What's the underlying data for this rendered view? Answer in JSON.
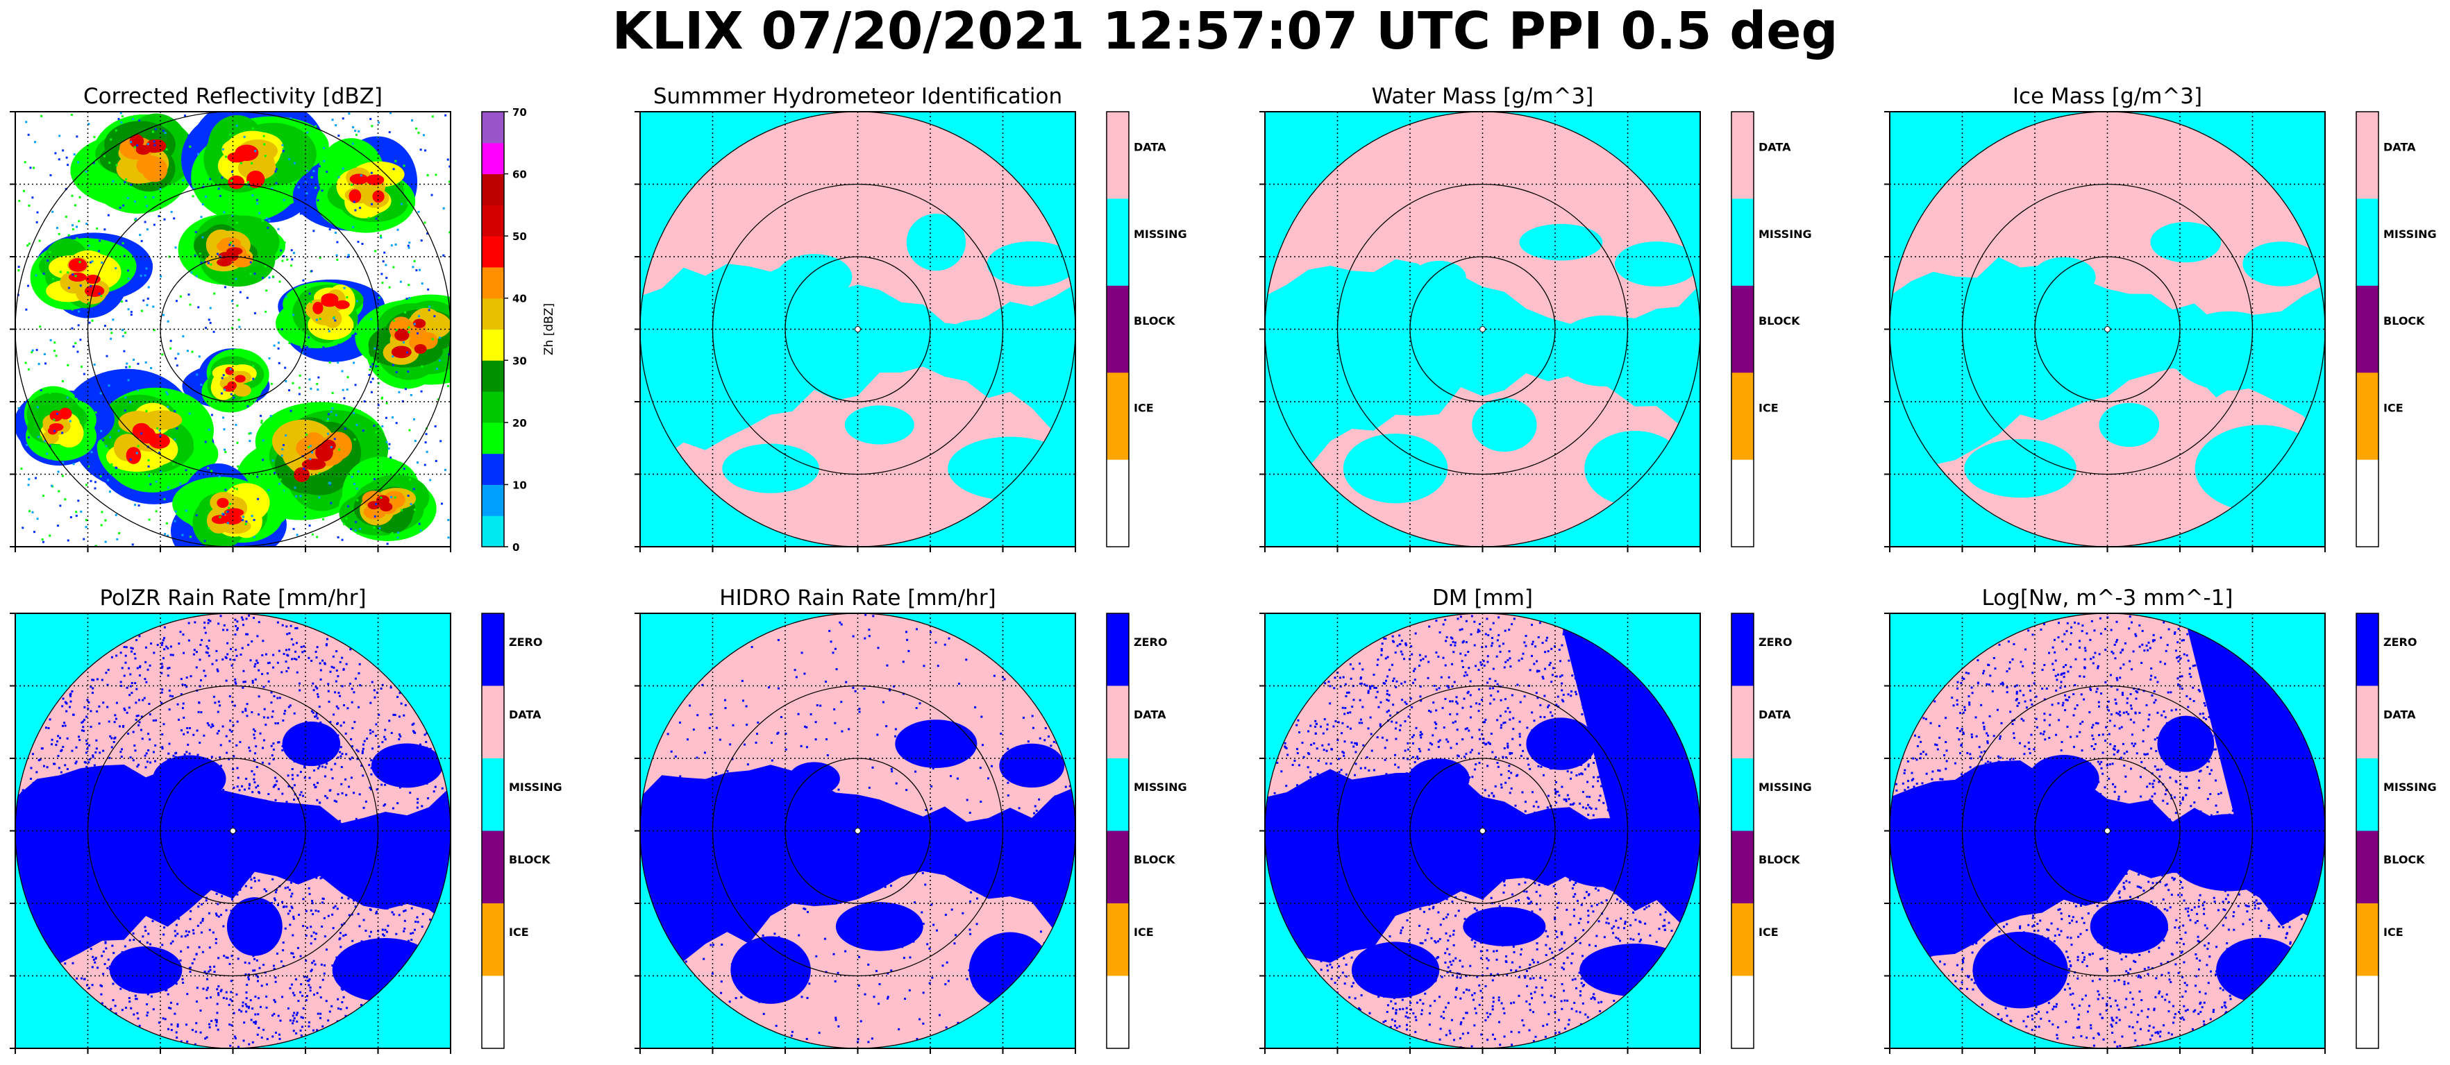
{
  "figure_title": "KLIX 07/20/2021 12:57:07 UTC PPI 0.5 deg",
  "colors": {
    "missing": "#00ffff",
    "data": "#ffc0cb",
    "zero": "#0000ff",
    "block": "#800080",
    "ice": "#ffa500",
    "blank": "#ffffff"
  },
  "chart_data": [
    {
      "type": "heatmap",
      "title": "Corrected Reflectivity [dBZ]",
      "colorbar": {
        "label": "Zh [dBZ]",
        "range": [
          0,
          70
        ],
        "ticks": [
          "0",
          "10",
          "20",
          "30",
          "40",
          "50",
          "60",
          "70"
        ],
        "palette": [
          "#00e8f0",
          "#00a0ff",
          "#0030ff",
          "#00ff00",
          "#00c800",
          "#009000",
          "#ffff00",
          "#e8c000",
          "#ff9000",
          "#ff0000",
          "#d40000",
          "#bc0000",
          "#ff00ff",
          "#9955c9"
        ]
      },
      "range_rings": 3,
      "grid": true
    },
    {
      "type": "heatmap",
      "title": "Summmer Hydrometeor Identification",
      "colorbar": {
        "categories": [
          "DATA",
          "MISSING",
          "BLOCK",
          "ICE",
          ""
        ]
      },
      "range_rings": 3,
      "grid": true
    },
    {
      "type": "heatmap",
      "title": "Water Mass [g/m^3]",
      "colorbar": {
        "categories": [
          "DATA",
          "MISSING",
          "BLOCK",
          "ICE",
          ""
        ]
      },
      "range_rings": 3,
      "grid": true
    },
    {
      "type": "heatmap",
      "title": "Ice Mass [g/m^3]",
      "colorbar": {
        "categories": [
          "DATA",
          "MISSING",
          "BLOCK",
          "ICE",
          ""
        ]
      },
      "range_rings": 3,
      "grid": true
    },
    {
      "type": "heatmap",
      "title": "PolZR Rain Rate [mm/hr]",
      "colorbar": {
        "categories": [
          "ZERO",
          "DATA",
          "MISSING",
          "BLOCK",
          "ICE",
          ""
        ]
      },
      "range_rings": 3,
      "grid": true
    },
    {
      "type": "heatmap",
      "title": "HIDRO Rain Rate [mm/hr]",
      "colorbar": {
        "categories": [
          "ZERO",
          "DATA",
          "MISSING",
          "BLOCK",
          "ICE",
          ""
        ]
      },
      "range_rings": 3,
      "grid": true
    },
    {
      "type": "heatmap",
      "title": "DM [mm]",
      "colorbar": {
        "categories": [
          "ZERO",
          "DATA",
          "MISSING",
          "BLOCK",
          "ICE",
          ""
        ]
      },
      "range_rings": 3,
      "grid": true
    },
    {
      "type": "heatmap",
      "title": "Log[Nw, m^-3 mm^-1]",
      "colorbar": {
        "categories": [
          "ZERO",
          "DATA",
          "MISSING",
          "BLOCK",
          "ICE",
          ""
        ]
      },
      "range_rings": 3,
      "grid": true
    }
  ]
}
